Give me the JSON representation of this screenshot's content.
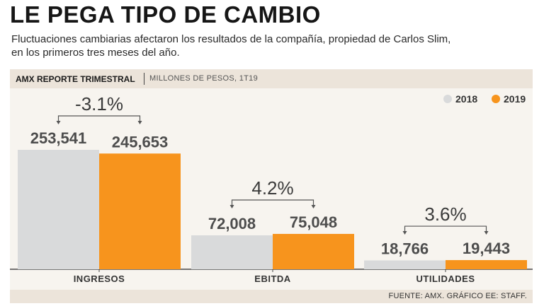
{
  "header": {
    "title": "LE PEGA TIPO DE CAMBIO",
    "subtitle_line1": "Fluctuaciones cambiarias afectaron los resultados de la compañía, propiedad de Carlos Slim,",
    "subtitle_line2": "en los primeros tres meses del año."
  },
  "band": {
    "title": "AMX REPORTE TRIMESTRAL",
    "unit": "MILLONES DE PESOS, 1T19"
  },
  "footer": {
    "source": "FUENTE: AMX. GRÁFICO EE: STAFF."
  },
  "colors": {
    "y2018": "#d9dadb",
    "y2019": "#f7941d",
    "band": "#ece4da",
    "axis": "#4a4a4a"
  },
  "chart_data": {
    "type": "bar",
    "title": "AMX REPORTE TRIMESTRAL",
    "ylabel": "MILLONES DE PESOS, 1T19",
    "xlabel": "",
    "ylim": [
      0,
      300000
    ],
    "legend_position": "top-right",
    "categories": [
      "INGRESOS",
      "EBITDA",
      "UTILIDADES"
    ],
    "series": [
      {
        "name": "2018",
        "values": [
          253541,
          72008,
          18766
        ],
        "labels": [
          "253,541",
          "72,008",
          "18,766"
        ]
      },
      {
        "name": "2019",
        "values": [
          245653,
          75048,
          19443
        ],
        "labels": [
          "245,653",
          "75,048",
          "19,443"
        ]
      }
    ],
    "changes": [
      "-3.1%",
      "4.2%",
      "3.6%"
    ]
  }
}
